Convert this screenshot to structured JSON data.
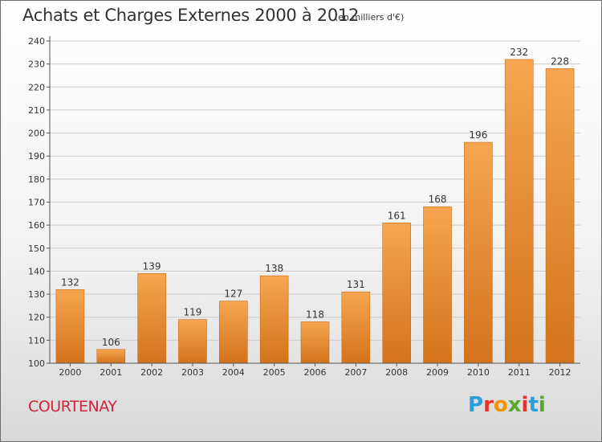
{
  "header": {
    "title": "Achats et Charges Externes 2000 à 2012",
    "subtitle": "(en milliers d'€)"
  },
  "footer": {
    "commune": "COURTENAY",
    "brand": "Proxiti",
    "brand_colors": [
      "#2b9fd9",
      "#e5332a",
      "#f29400",
      "#59a82f",
      "#e5332a",
      "#2b9fd9",
      "#59a82f"
    ]
  },
  "colors": {
    "bar_light": "#f6a650",
    "bar_dark": "#d3731c",
    "grid": "#cccccc",
    "axis": "#555555",
    "commune": "#d0243a"
  },
  "chart_data": {
    "type": "bar",
    "title": "Achats et Charges Externes 2000 à 2012",
    "subtitle": "(en milliers d'€)",
    "xlabel": "",
    "ylabel": "",
    "categories": [
      "2000",
      "2001",
      "2002",
      "2003",
      "2004",
      "2005",
      "2006",
      "2007",
      "2008",
      "2009",
      "2010",
      "2011",
      "2012"
    ],
    "values": [
      132,
      106,
      139,
      119,
      127,
      138,
      118,
      131,
      161,
      168,
      196,
      232,
      228
    ],
    "ylim": [
      100,
      240
    ],
    "yticks": [
      100,
      110,
      120,
      130,
      140,
      150,
      160,
      170,
      180,
      190,
      200,
      210,
      220,
      230,
      240
    ],
    "grid": true,
    "legend": "none",
    "data_labels": true
  }
}
